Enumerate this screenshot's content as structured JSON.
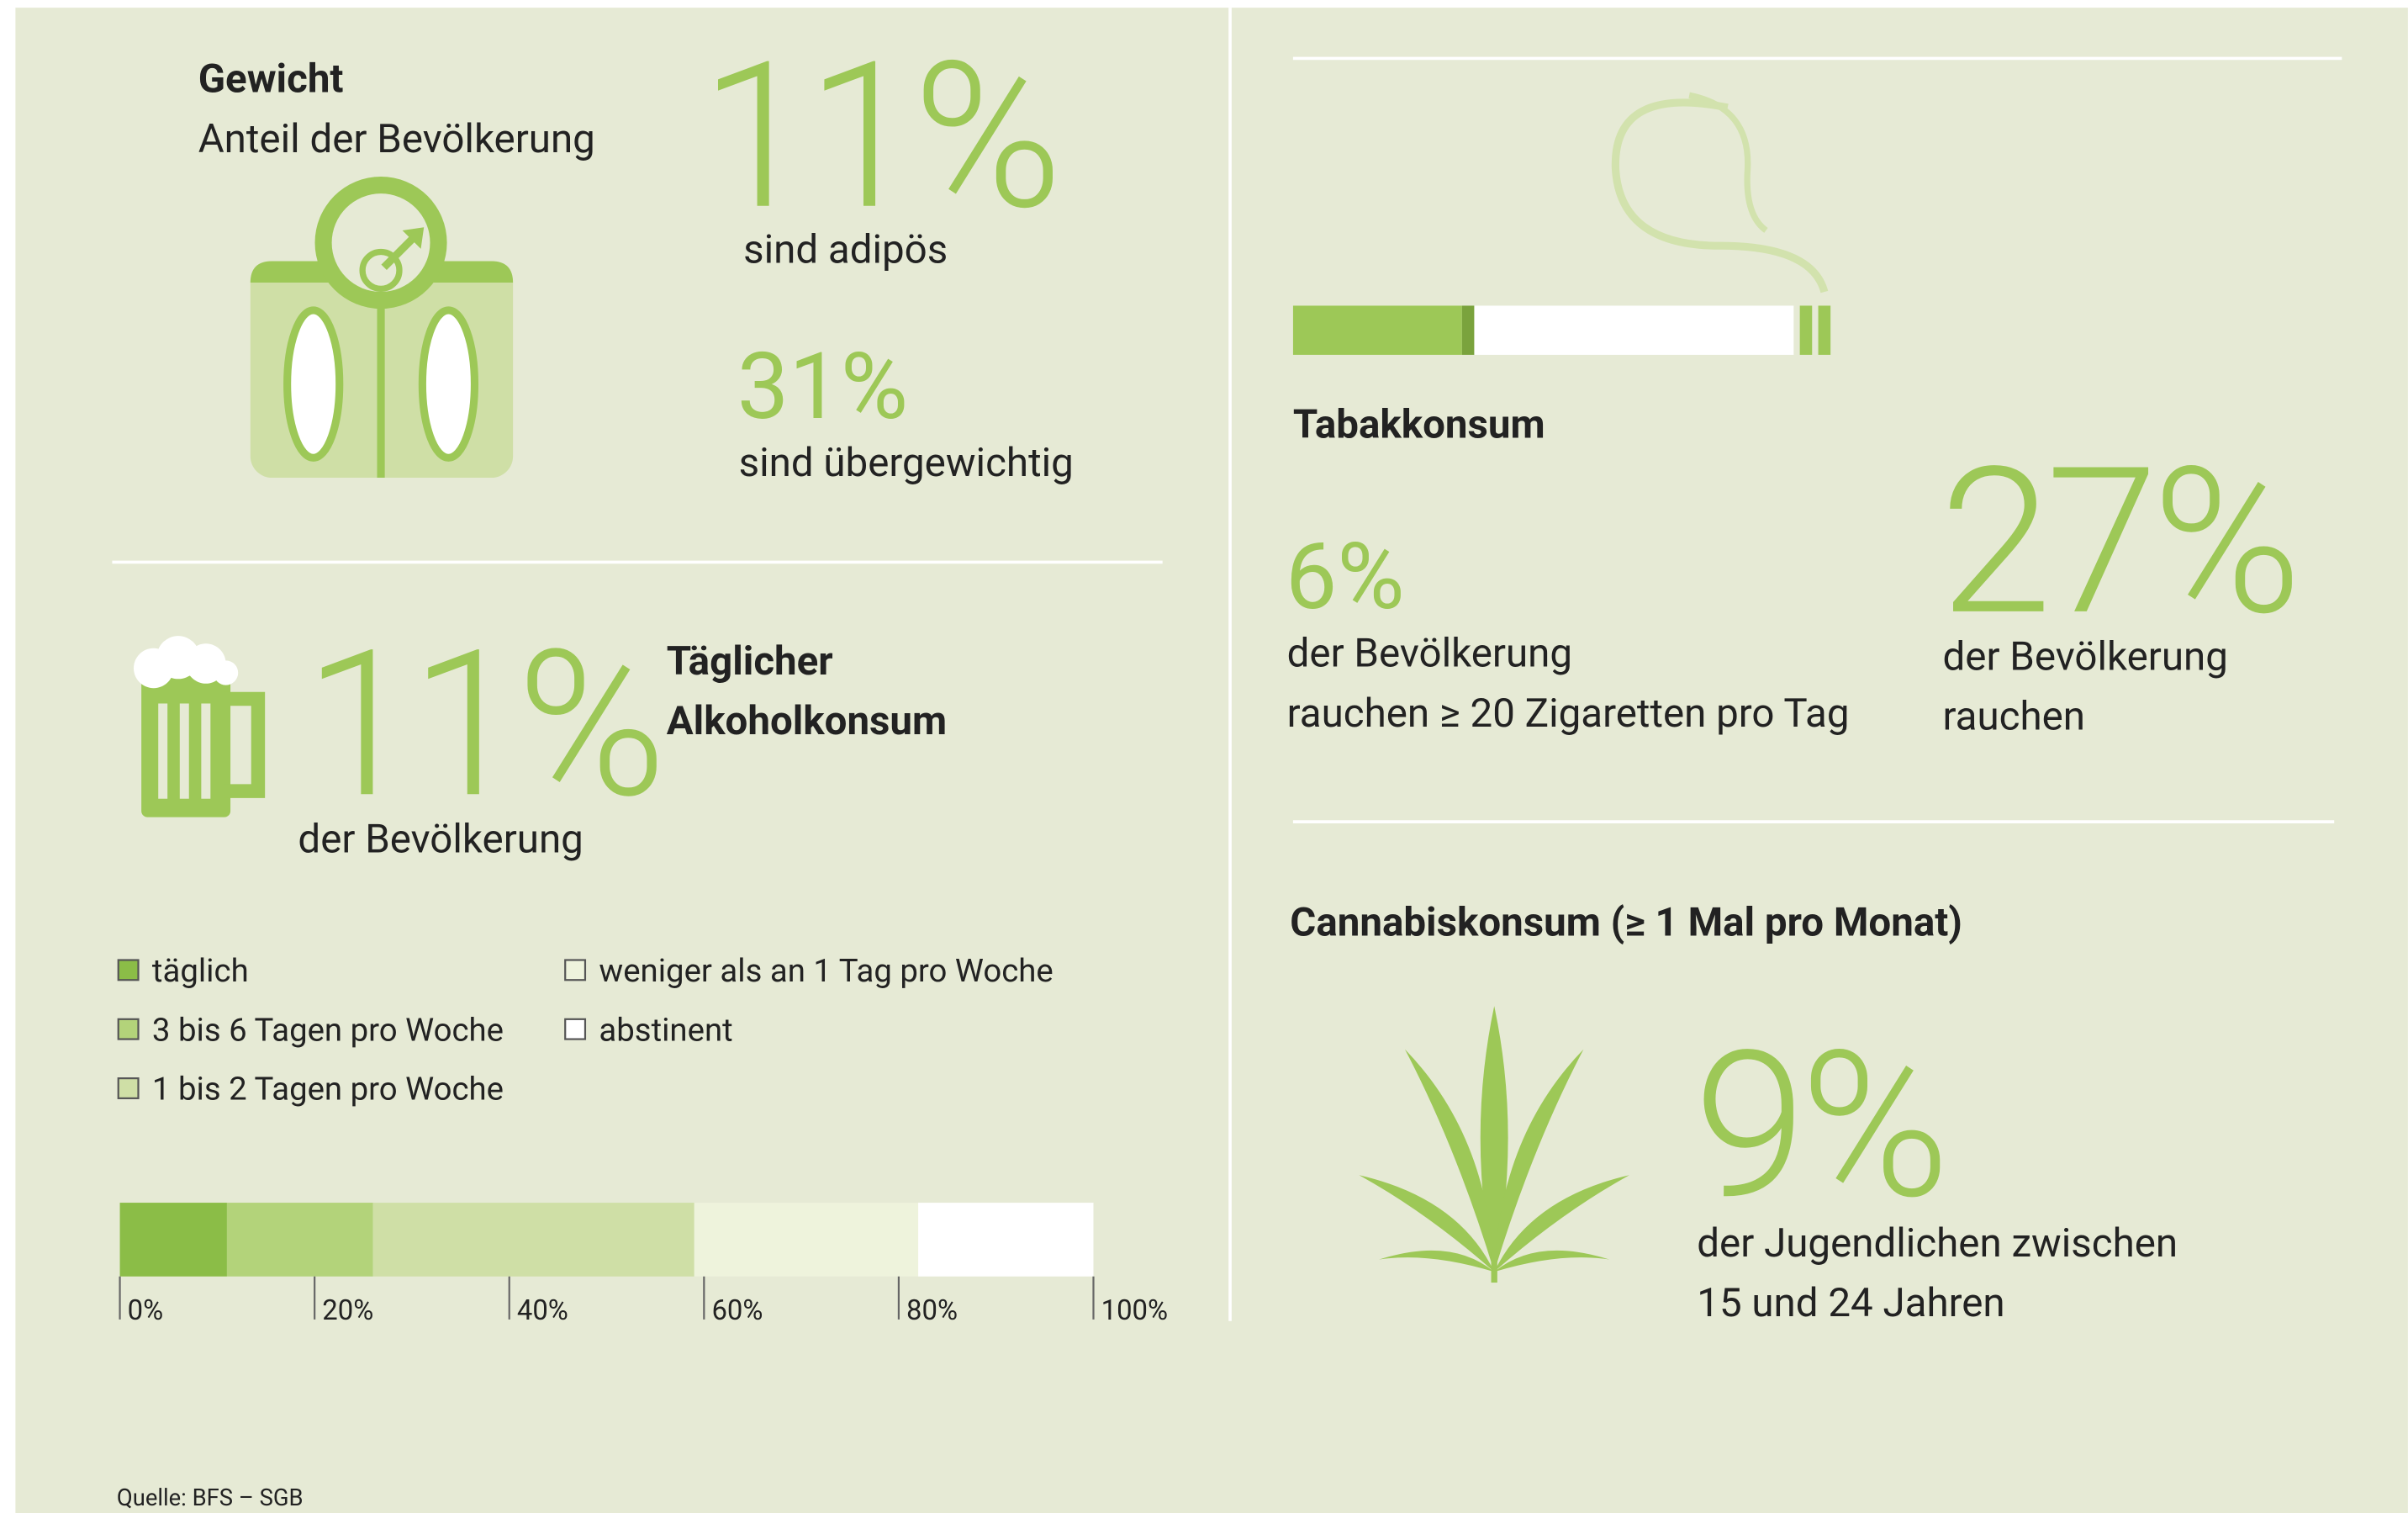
{
  "weight": {
    "title": "Gewicht",
    "subtitle": "Anteil der Bevölkerung",
    "obese": {
      "value": "11%",
      "label": "sind adipös"
    },
    "overweight": {
      "value": "31%",
      "label": "sind übergewichtig"
    }
  },
  "alcohol": {
    "title_lines": [
      "Täglicher",
      "Alkoholkonsum"
    ],
    "value": "11%",
    "label": "der Bevölkerung",
    "chart_data": {
      "type": "stacked-bar",
      "series": [
        {
          "name": "täglich",
          "color": "#8bbd47",
          "values": [
            11
          ]
        },
        {
          "name": "3 bis 6 Tagen pro Woche",
          "color": "#b3d37a",
          "values": [
            15
          ]
        },
        {
          "name": "1 bis 2 Tagen pro Woche",
          "color": "#cfdfa6",
          "values": [
            33
          ]
        },
        {
          "name": "weniger als an 1 Tag pro Woche",
          "color": "#eef3dc",
          "values": [
            23
          ]
        },
        {
          "name": "abstinent",
          "color": "#ffffff",
          "values": [
            18
          ]
        }
      ],
      "xlim": [
        0,
        100
      ],
      "xticks": [
        {
          "value": 0,
          "label": "0%"
        },
        {
          "value": 20,
          "label": "20%"
        },
        {
          "value": 40,
          "label": "40%"
        },
        {
          "value": 60,
          "label": "60%"
        },
        {
          "value": 80,
          "label": "80%"
        },
        {
          "value": 100,
          "label": "100%"
        }
      ]
    }
  },
  "tobacco": {
    "title": "Tabakkonsum",
    "heavy": {
      "value": "6%",
      "label_lines": [
        "der Bevölkerung",
        "rauchen ≥ 20 Zigaretten pro Tag"
      ]
    },
    "smokers": {
      "value": "27%",
      "label_lines": [
        "der Bevölkerung",
        "rauchen"
      ]
    }
  },
  "cannabis": {
    "title": "Cannabiskonsum (≥ 1 Mal pro Monat)",
    "value": "9%",
    "label_lines": [
      "der Jugendlichen zwischen",
      "15 und 24 Jahren"
    ]
  },
  "source": "Quelle: BFS – SGB"
}
